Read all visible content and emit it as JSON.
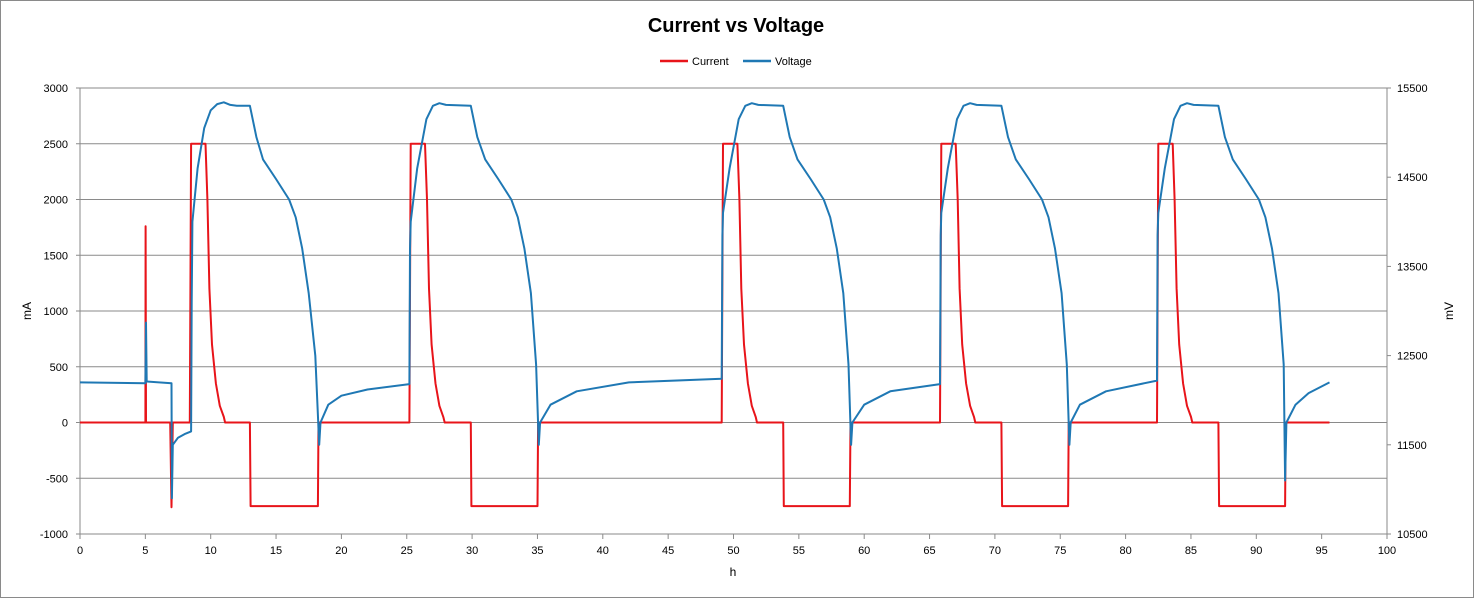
{
  "chart_data": {
    "type": "line",
    "title": "Current vs Voltage",
    "xlabel": "h",
    "ylabel": "mA",
    "y2label": "mV",
    "xlim": [
      0,
      100
    ],
    "ylim": [
      -1000,
      3000
    ],
    "y2lim": [
      10500,
      15500
    ],
    "xticks": [
      "0",
      "5",
      "10",
      "15",
      "20",
      "25",
      "30",
      "35",
      "40",
      "45",
      "50",
      "55",
      "60",
      "65",
      "70",
      "75",
      "80",
      "85",
      "90",
      "95",
      "100"
    ],
    "yticks": [
      "-1000",
      "-500",
      "0",
      "500",
      "1000",
      "1500",
      "2000",
      "2500",
      "3000"
    ],
    "y2ticks": [
      "10500",
      "11500",
      "12500",
      "13500",
      "14500",
      "15500"
    ],
    "grid": "horizontal",
    "legend_position": "top-center",
    "series": [
      {
        "name": "Current",
        "axis": "left",
        "color": "#e8141a",
        "points": [
          [
            0,
            0
          ],
          [
            5.0,
            0
          ],
          [
            5.02,
            1760
          ],
          [
            5.05,
            0
          ],
          [
            6.9,
            0
          ],
          [
            7.0,
            -760
          ],
          [
            7.1,
            0
          ],
          [
            8.4,
            0
          ],
          [
            8.5,
            2500
          ],
          [
            9.6,
            2500
          ],
          [
            9.75,
            2000
          ],
          [
            9.9,
            1200
          ],
          [
            10.1,
            700
          ],
          [
            10.4,
            350
          ],
          [
            10.7,
            150
          ],
          [
            11.0,
            50
          ],
          [
            11.1,
            0
          ],
          [
            13.0,
            0
          ],
          [
            13.05,
            -750
          ],
          [
            18.2,
            -750
          ],
          [
            18.25,
            0
          ],
          [
            25.2,
            0
          ],
          [
            25.3,
            2500
          ],
          [
            26.4,
            2500
          ],
          [
            26.55,
            2000
          ],
          [
            26.7,
            1200
          ],
          [
            26.9,
            700
          ],
          [
            27.2,
            350
          ],
          [
            27.5,
            150
          ],
          [
            27.8,
            50
          ],
          [
            27.9,
            0
          ],
          [
            29.9,
            0
          ],
          [
            29.95,
            -750
          ],
          [
            35.0,
            -750
          ],
          [
            35.05,
            0
          ],
          [
            49.1,
            0
          ],
          [
            49.2,
            2500
          ],
          [
            50.3,
            2500
          ],
          [
            50.45,
            2000
          ],
          [
            50.6,
            1200
          ],
          [
            50.8,
            700
          ],
          [
            51.1,
            350
          ],
          [
            51.4,
            150
          ],
          [
            51.7,
            50
          ],
          [
            51.8,
            0
          ],
          [
            53.8,
            0
          ],
          [
            53.85,
            -750
          ],
          [
            58.9,
            -750
          ],
          [
            58.95,
            0
          ],
          [
            65.8,
            0
          ],
          [
            65.9,
            2500
          ],
          [
            67.0,
            2500
          ],
          [
            67.15,
            2000
          ],
          [
            67.3,
            1200
          ],
          [
            67.5,
            700
          ],
          [
            67.8,
            350
          ],
          [
            68.1,
            150
          ],
          [
            68.4,
            50
          ],
          [
            68.5,
            0
          ],
          [
            70.5,
            0
          ],
          [
            70.55,
            -750
          ],
          [
            75.6,
            -750
          ],
          [
            75.65,
            0
          ],
          [
            82.4,
            0
          ],
          [
            82.5,
            2500
          ],
          [
            83.6,
            2500
          ],
          [
            83.75,
            2000
          ],
          [
            83.9,
            1200
          ],
          [
            84.1,
            700
          ],
          [
            84.4,
            350
          ],
          [
            84.7,
            150
          ],
          [
            85.0,
            50
          ],
          [
            85.1,
            0
          ],
          [
            87.1,
            0
          ],
          [
            87.15,
            -750
          ],
          [
            92.2,
            -750
          ],
          [
            92.25,
            0
          ],
          [
            95.6,
            0
          ]
        ]
      },
      {
        "name": "Voltage",
        "axis": "right",
        "color": "#1f78b4",
        "points": [
          [
            0,
            12200
          ],
          [
            5.0,
            12190
          ],
          [
            5.05,
            12870
          ],
          [
            5.1,
            12210
          ],
          [
            7.0,
            12190
          ],
          [
            7.03,
            10900
          ],
          [
            7.1,
            11500
          ],
          [
            7.5,
            11580
          ],
          [
            8.0,
            11620
          ],
          [
            8.5,
            11650
          ],
          [
            8.55,
            13100
          ],
          [
            8.6,
            14000
          ],
          [
            9.0,
            14600
          ],
          [
            9.5,
            15050
          ],
          [
            10.0,
            15250
          ],
          [
            10.5,
            15320
          ],
          [
            11.0,
            15340
          ],
          [
            11.5,
            15310
          ],
          [
            12.0,
            15300
          ],
          [
            13.0,
            15300
          ],
          [
            13.5,
            14950
          ],
          [
            14.0,
            14700
          ],
          [
            15.0,
            14480
          ],
          [
            16.0,
            14250
          ],
          [
            16.5,
            14050
          ],
          [
            17.0,
            13700
          ],
          [
            17.5,
            13200
          ],
          [
            18.0,
            12500
          ],
          [
            18.3,
            11500
          ],
          [
            18.4,
            11750
          ],
          [
            19.0,
            11950
          ],
          [
            20.0,
            12050
          ],
          [
            22.0,
            12120
          ],
          [
            25.2,
            12180
          ],
          [
            25.25,
            13700
          ],
          [
            25.3,
            14000
          ],
          [
            25.8,
            14600
          ],
          [
            26.5,
            15150
          ],
          [
            27.0,
            15300
          ],
          [
            27.5,
            15330
          ],
          [
            28.0,
            15310
          ],
          [
            29.9,
            15300
          ],
          [
            30.4,
            14950
          ],
          [
            31.0,
            14700
          ],
          [
            32.0,
            14480
          ],
          [
            33.0,
            14250
          ],
          [
            33.5,
            14050
          ],
          [
            34.0,
            13700
          ],
          [
            34.5,
            13200
          ],
          [
            34.9,
            12400
          ],
          [
            35.1,
            11500
          ],
          [
            35.2,
            11750
          ],
          [
            36.0,
            11950
          ],
          [
            38.0,
            12100
          ],
          [
            42.0,
            12200
          ],
          [
            49.1,
            12240
          ],
          [
            49.15,
            13850
          ],
          [
            49.2,
            14100
          ],
          [
            49.7,
            14600
          ],
          [
            50.4,
            15150
          ],
          [
            50.9,
            15300
          ],
          [
            51.4,
            15330
          ],
          [
            51.9,
            15310
          ],
          [
            53.8,
            15300
          ],
          [
            54.3,
            14950
          ],
          [
            54.9,
            14700
          ],
          [
            55.9,
            14480
          ],
          [
            56.9,
            14250
          ],
          [
            57.4,
            14050
          ],
          [
            57.9,
            13700
          ],
          [
            58.4,
            13200
          ],
          [
            58.8,
            12400
          ],
          [
            59.0,
            11500
          ],
          [
            59.1,
            11750
          ],
          [
            60.0,
            11950
          ],
          [
            62.0,
            12100
          ],
          [
            65.8,
            12180
          ],
          [
            65.85,
            13850
          ],
          [
            65.9,
            14100
          ],
          [
            66.4,
            14600
          ],
          [
            67.1,
            15150
          ],
          [
            67.6,
            15300
          ],
          [
            68.1,
            15330
          ],
          [
            68.6,
            15310
          ],
          [
            70.5,
            15300
          ],
          [
            71.0,
            14950
          ],
          [
            71.6,
            14700
          ],
          [
            72.6,
            14480
          ],
          [
            73.6,
            14250
          ],
          [
            74.1,
            14050
          ],
          [
            74.6,
            13700
          ],
          [
            75.1,
            13200
          ],
          [
            75.5,
            12400
          ],
          [
            75.7,
            11500
          ],
          [
            75.8,
            11750
          ],
          [
            76.5,
            11950
          ],
          [
            78.5,
            12100
          ],
          [
            82.4,
            12220
          ],
          [
            82.45,
            13850
          ],
          [
            82.5,
            14100
          ],
          [
            83.0,
            14600
          ],
          [
            83.7,
            15150
          ],
          [
            84.2,
            15300
          ],
          [
            84.7,
            15330
          ],
          [
            85.2,
            15310
          ],
          [
            87.1,
            15300
          ],
          [
            87.6,
            14950
          ],
          [
            88.2,
            14700
          ],
          [
            89.2,
            14480
          ],
          [
            90.2,
            14250
          ],
          [
            90.7,
            14050
          ],
          [
            91.2,
            13700
          ],
          [
            91.7,
            13200
          ],
          [
            92.1,
            12400
          ],
          [
            92.2,
            11100
          ],
          [
            92.3,
            11750
          ],
          [
            93.0,
            11950
          ],
          [
            94.0,
            12080
          ],
          [
            95.6,
            12200
          ]
        ]
      }
    ]
  }
}
